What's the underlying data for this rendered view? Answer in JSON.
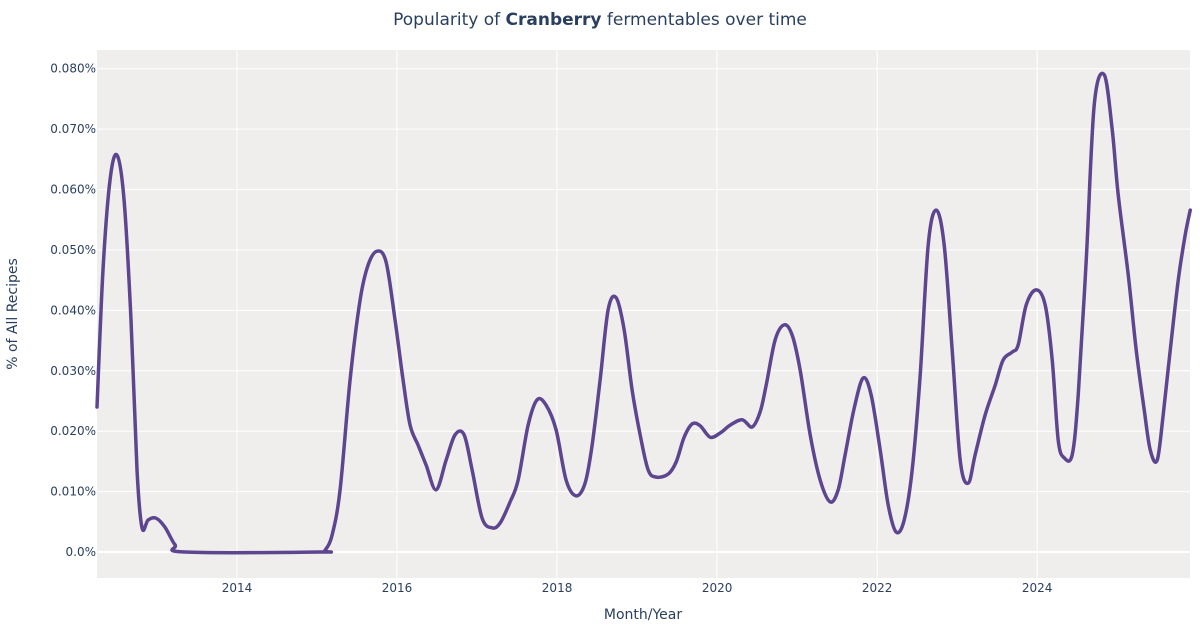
{
  "chart_data": {
    "type": "line",
    "title_prefix": "Popularity of ",
    "title_bold": "Cranberry",
    "title_suffix": " fermentables over time",
    "xlabel": "Month/Year",
    "ylabel": "% of All Recipes",
    "xlim": [
      2012.25,
      2025.91
    ],
    "ylim": [
      -0.0043,
      0.0831
    ],
    "x_ticks": [
      2014,
      2016,
      2018,
      2020,
      2022,
      2024
    ],
    "x_tick_labels": [
      "2014",
      "2016",
      "2018",
      "2020",
      "2022",
      "2024"
    ],
    "y_ticks": [
      0,
      0.01,
      0.02,
      0.03,
      0.04,
      0.05,
      0.06,
      0.07,
      0.08
    ],
    "y_tick_labels": [
      "0.0%",
      "0.010%",
      "0.020%",
      "0.030%",
      "0.040%",
      "0.050%",
      "0.060%",
      "0.070%",
      "0.080%"
    ],
    "grid": true,
    "colors": {
      "line": "#5e4590",
      "plot_bg": "#efeeec",
      "grid": "#ffffff",
      "text": "#2a3f5f"
    },
    "series": [
      {
        "x": [
          2012.25,
          2012.325,
          2012.413,
          2012.5,
          2012.588,
          2012.675,
          2012.75,
          2012.813,
          2012.888,
          2012.988,
          2013.1,
          2013.225,
          2013.35,
          2015.038,
          2015.1,
          2015.188,
          2015.288,
          2015.413,
          2015.538,
          2015.638,
          2015.75,
          2015.863,
          2015.975,
          2016.075,
          2016.163,
          2016.263,
          2016.363,
          2016.488,
          2016.613,
          2016.725,
          2016.838,
          2016.938,
          2017.063,
          2017.188,
          2017.288,
          2017.413,
          2017.513,
          2017.638,
          2017.75,
          2017.863,
          2017.988,
          2018.113,
          2018.238,
          2018.35,
          2018.438,
          2018.538,
          2018.638,
          2018.738,
          2018.838,
          2018.938,
          2019.038,
          2019.138,
          2019.238,
          2019.388,
          2019.488,
          2019.588,
          2019.688,
          2019.788,
          2019.913,
          2020.038,
          2020.163,
          2020.313,
          2020.438,
          2020.538,
          2020.613,
          2020.725,
          2020.838,
          2020.938,
          2021.038,
          2021.163,
          2021.288,
          2021.413,
          2021.513,
          2021.6,
          2021.713,
          2021.825,
          2021.925,
          2022.038,
          2022.138,
          2022.238,
          2022.338,
          2022.438,
          2022.538,
          2022.638,
          2022.738,
          2022.838,
          2022.938,
          2023.038,
          2023.138,
          2023.225,
          2023.35,
          2023.475,
          2023.575,
          2023.688,
          2023.763,
          2023.863,
          2023.988,
          2024.1,
          2024.188,
          2024.263,
          2024.338,
          2024.438,
          2024.513,
          2024.613,
          2024.713,
          2024.838,
          2024.938,
          2025.013,
          2025.138,
          2025.238,
          2025.338,
          2025.413,
          2025.5,
          2025.575,
          2025.663,
          2025.763,
          2025.85,
          2025.913
        ],
        "y": [
          0.024,
          0.0467,
          0.0616,
          0.0657,
          0.0583,
          0.0384,
          0.0136,
          0.004,
          0.0053,
          0.0056,
          0.0041,
          0.0012,
          0,
          0,
          0.0003,
          0.0028,
          0.0103,
          0.0285,
          0.0417,
          0.0475,
          0.0498,
          0.048,
          0.0384,
          0.0285,
          0.021,
          0.0177,
          0.0144,
          0.0103,
          0.0152,
          0.0194,
          0.0194,
          0.0136,
          0.0056,
          0.004,
          0.0048,
          0.0083,
          0.0119,
          0.021,
          0.0252,
          0.0243,
          0.0202,
          0.0119,
          0.0093,
          0.0114,
          0.0177,
          0.0285,
          0.0401,
          0.0421,
          0.0368,
          0.0268,
          0.0194,
          0.0136,
          0.0124,
          0.0129,
          0.0149,
          0.019,
          0.0212,
          0.0209,
          0.019,
          0.0197,
          0.021,
          0.0219,
          0.0207,
          0.0232,
          0.0276,
          0.0351,
          0.0376,
          0.0359,
          0.0301,
          0.0194,
          0.0119,
          0.0083,
          0.0103,
          0.0161,
          0.0238,
          0.0288,
          0.026,
          0.0169,
          0.0078,
          0.0033,
          0.0053,
          0.0136,
          0.0293,
          0.0508,
          0.0566,
          0.0508,
          0.0334,
          0.0152,
          0.0114,
          0.0161,
          0.0227,
          0.0276,
          0.0318,
          0.0331,
          0.0343,
          0.0409,
          0.0434,
          0.0409,
          0.0318,
          0.0185,
          0.0156,
          0.0161,
          0.026,
          0.0483,
          0.074,
          0.079,
          0.0699,
          0.0591,
          0.0459,
          0.0334,
          0.0235,
          0.0169,
          0.0152,
          0.0227,
          0.0334,
          0.045,
          0.0525,
          0.0566
        ]
      }
    ]
  }
}
